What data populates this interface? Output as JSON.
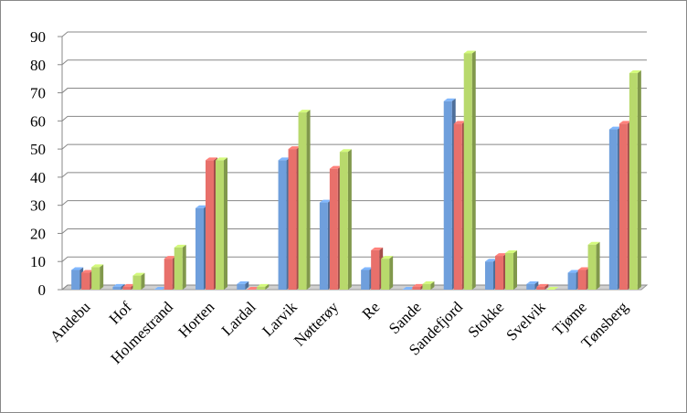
{
  "chart_data": {
    "type": "bar",
    "categories": [
      "Andebu",
      "Hof",
      "Holmestrand",
      "Horten",
      "Lardal",
      "Larvik",
      "Nøtterøy",
      "Re",
      "Sande",
      "Sandefjord",
      "Stokke",
      "Svelvik",
      "Tjøme",
      "Tønsberg"
    ],
    "series": [
      {
        "color": "#6f9fdc",
        "values": [
          7,
          1,
          0,
          29,
          2,
          46,
          31,
          7,
          0,
          67,
          10,
          2,
          6,
          57
        ]
      },
      {
        "color": "#e8706b",
        "values": [
          6,
          1,
          11,
          46,
          0,
          50,
          43,
          14,
          1,
          59,
          12,
          1,
          7,
          59
        ]
      },
      {
        "color": "#b8d96c",
        "values": [
          8,
          5,
          15,
          46,
          1,
          63,
          49,
          11,
          2,
          84,
          13,
          0,
          16,
          77
        ]
      }
    ],
    "ylim": [
      0,
      90
    ],
    "yticks": [
      0,
      10,
      20,
      30,
      40,
      50,
      60,
      70,
      80,
      90
    ],
    "grid": true
  }
}
